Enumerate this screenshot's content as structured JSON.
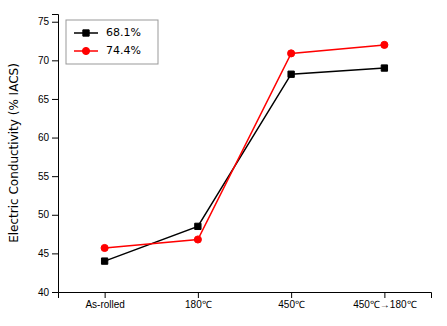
{
  "chart_data": {
    "type": "line",
    "categories": [
      "As-rolled",
      "180℃",
      "450℃",
      "450℃→180℃"
    ],
    "series": [
      {
        "name": "68.1%",
        "color": "black",
        "marker": "square",
        "values": [
          44.0,
          48.5,
          68.2,
          69.0
        ]
      },
      {
        "name": "74.4%",
        "color": "red",
        "marker": "circle",
        "values": [
          45.7,
          46.8,
          70.9,
          72.0
        ]
      }
    ],
    "ylabel": "Electric Conductivity (% IACS)",
    "ylim": [
      40,
      76
    ],
    "yticks": [
      40,
      45,
      50,
      55,
      60,
      65,
      70,
      75
    ],
    "legend": "upper left",
    "grid": false
  }
}
